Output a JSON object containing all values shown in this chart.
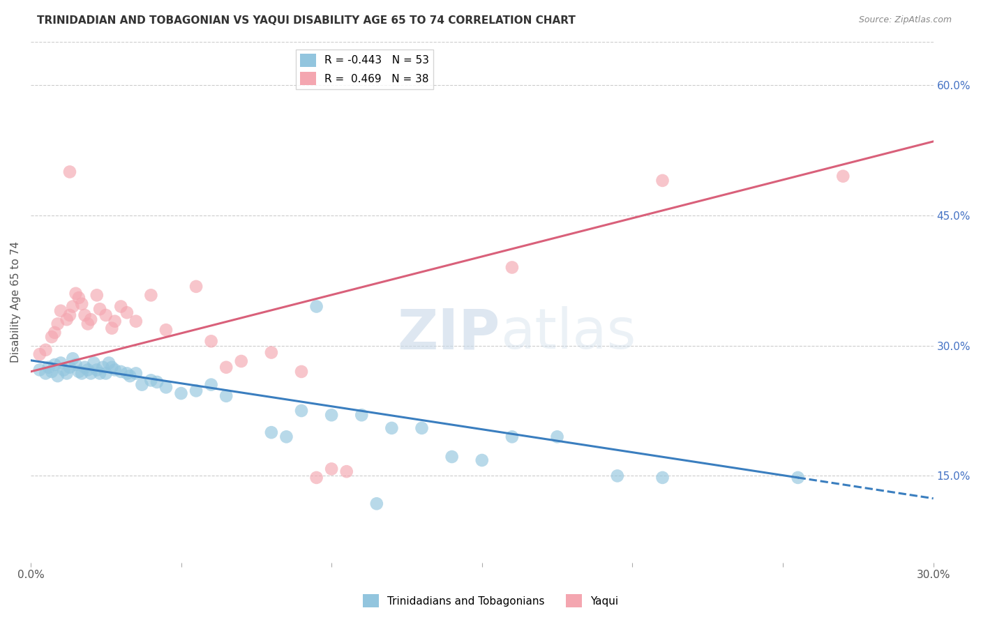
{
  "title": "TRINIDADIAN AND TOBAGONIAN VS YAQUI DISABILITY AGE 65 TO 74 CORRELATION CHART",
  "source": "Source: ZipAtlas.com",
  "xlabel": "",
  "ylabel": "Disability Age 65 to 74",
  "xlim": [
    0.0,
    0.3
  ],
  "ylim": [
    0.05,
    0.65
  ],
  "x_ticks": [
    0.0,
    0.05,
    0.1,
    0.15,
    0.2,
    0.25,
    0.3
  ],
  "y_ticks": [
    0.15,
    0.3,
    0.45,
    0.6
  ],
  "y_tick_labels": [
    "15.0%",
    "30.0%",
    "45.0%",
    "60.0%"
  ],
  "watermark_zip": "ZIP",
  "watermark_atlas": "atlas",
  "legend_blue_label": "R = -0.443   N = 53",
  "legend_pink_label": "R =  0.469   N = 38",
  "blue_color": "#92c5de",
  "pink_color": "#f4a6b0",
  "blue_line_color": "#3a7ebf",
  "pink_line_color": "#d9607a",
  "blue_scatter": [
    [
      0.003,
      0.272
    ],
    [
      0.005,
      0.268
    ],
    [
      0.006,
      0.275
    ],
    [
      0.007,
      0.27
    ],
    [
      0.008,
      0.278
    ],
    [
      0.009,
      0.265
    ],
    [
      0.01,
      0.28
    ],
    [
      0.011,
      0.272
    ],
    [
      0.012,
      0.268
    ],
    [
      0.013,
      0.275
    ],
    [
      0.014,
      0.285
    ],
    [
      0.015,
      0.278
    ],
    [
      0.016,
      0.27
    ],
    [
      0.017,
      0.268
    ],
    [
      0.018,
      0.275
    ],
    [
      0.019,
      0.272
    ],
    [
      0.02,
      0.268
    ],
    [
      0.021,
      0.28
    ],
    [
      0.022,
      0.272
    ],
    [
      0.023,
      0.268
    ],
    [
      0.024,
      0.275
    ],
    [
      0.025,
      0.268
    ],
    [
      0.026,
      0.28
    ],
    [
      0.027,
      0.275
    ],
    [
      0.028,
      0.272
    ],
    [
      0.03,
      0.27
    ],
    [
      0.032,
      0.268
    ],
    [
      0.033,
      0.265
    ],
    [
      0.035,
      0.268
    ],
    [
      0.037,
      0.255
    ],
    [
      0.04,
      0.26
    ],
    [
      0.042,
      0.258
    ],
    [
      0.045,
      0.252
    ],
    [
      0.05,
      0.245
    ],
    [
      0.055,
      0.248
    ],
    [
      0.06,
      0.255
    ],
    [
      0.065,
      0.242
    ],
    [
      0.08,
      0.2
    ],
    [
      0.085,
      0.195
    ],
    [
      0.09,
      0.225
    ],
    [
      0.095,
      0.345
    ],
    [
      0.1,
      0.22
    ],
    [
      0.11,
      0.22
    ],
    [
      0.115,
      0.118
    ],
    [
      0.12,
      0.205
    ],
    [
      0.13,
      0.205
    ],
    [
      0.14,
      0.172
    ],
    [
      0.15,
      0.168
    ],
    [
      0.16,
      0.195
    ],
    [
      0.175,
      0.195
    ],
    [
      0.195,
      0.15
    ],
    [
      0.21,
      0.148
    ],
    [
      0.255,
      0.148
    ]
  ],
  "pink_scatter": [
    [
      0.003,
      0.29
    ],
    [
      0.005,
      0.295
    ],
    [
      0.007,
      0.31
    ],
    [
      0.008,
      0.315
    ],
    [
      0.009,
      0.325
    ],
    [
      0.01,
      0.34
    ],
    [
      0.012,
      0.33
    ],
    [
      0.013,
      0.335
    ],
    [
      0.014,
      0.345
    ],
    [
      0.015,
      0.36
    ],
    [
      0.016,
      0.355
    ],
    [
      0.017,
      0.348
    ],
    [
      0.018,
      0.335
    ],
    [
      0.019,
      0.325
    ],
    [
      0.02,
      0.33
    ],
    [
      0.022,
      0.358
    ],
    [
      0.023,
      0.342
    ],
    [
      0.025,
      0.335
    ],
    [
      0.027,
      0.32
    ],
    [
      0.028,
      0.328
    ],
    [
      0.03,
      0.345
    ],
    [
      0.032,
      0.338
    ],
    [
      0.035,
      0.328
    ],
    [
      0.04,
      0.358
    ],
    [
      0.045,
      0.318
    ],
    [
      0.055,
      0.368
    ],
    [
      0.06,
      0.305
    ],
    [
      0.065,
      0.275
    ],
    [
      0.07,
      0.282
    ],
    [
      0.08,
      0.292
    ],
    [
      0.09,
      0.27
    ],
    [
      0.095,
      0.148
    ],
    [
      0.1,
      0.158
    ],
    [
      0.105,
      0.155
    ],
    [
      0.013,
      0.5
    ],
    [
      0.21,
      0.49
    ],
    [
      0.27,
      0.495
    ],
    [
      0.16,
      0.39
    ]
  ],
  "blue_line": [
    [
      0.0,
      0.283
    ],
    [
      0.255,
      0.148
    ]
  ],
  "blue_dashed_line": [
    [
      0.255,
      0.148
    ],
    [
      0.3,
      0.124
    ]
  ],
  "pink_line": [
    [
      0.0,
      0.27
    ],
    [
      0.3,
      0.535
    ]
  ],
  "footnote_blue": "Trinidadians and Tobagonians",
  "footnote_pink": "Yaqui",
  "background_color": "#ffffff",
  "grid_color": "#cccccc"
}
